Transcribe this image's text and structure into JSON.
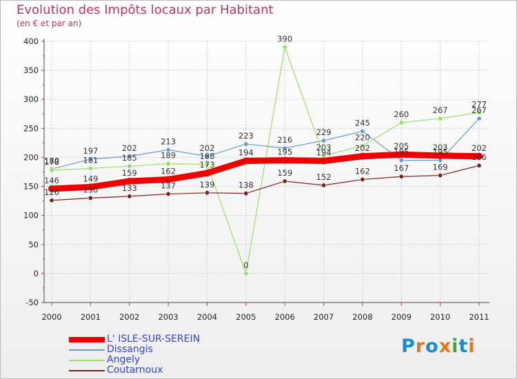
{
  "title": "Evolution des Impôts locaux par Habitant",
  "subtitle": "(en € et par an)",
  "logo": {
    "text": "Proxiti",
    "colors": [
      "#1a8ad4",
      "#e8741a",
      "#1a8ad4",
      "#e8741a",
      "#3aa83a",
      "#1a8ad4",
      "#e8741a"
    ]
  },
  "chart_data": {
    "type": "line",
    "title": "Evolution des Impôts locaux par Habitant",
    "ylabel": "(en € et par an)",
    "xlabel": "",
    "ylim": [
      -50,
      400
    ],
    "yticks": [
      -50,
      0,
      50,
      100,
      150,
      200,
      250,
      300,
      350,
      400
    ],
    "x": [
      "2000",
      "2001",
      "2002",
      "2003",
      "2004",
      "2005",
      "2006",
      "2007",
      "2008",
      "2009",
      "2010",
      "2011"
    ],
    "grid": true,
    "series": [
      {
        "name": "L' ISLE-SUR-SEREIN",
        "color": "#ee0000",
        "values": [
          146,
          149,
          159,
          162,
          173,
          194,
          195,
          194,
          202,
          205,
          203,
          202
        ]
      },
      {
        "name": "Dissangis",
        "color": "#6699cc",
        "values": [
          180,
          197,
          202,
          213,
          202,
          223,
          216,
          229,
          245,
          195,
          195,
          267
        ]
      },
      {
        "name": "Angely",
        "color": "#99dd66",
        "values": [
          178,
          181,
          185,
          189,
          188,
          0,
          390,
          203,
          220,
          260,
          267,
          277
        ]
      },
      {
        "name": "Coutarnoux",
        "color": "#772222",
        "values": [
          126,
          130,
          133,
          137,
          139,
          138,
          159,
          152,
          162,
          167,
          169,
          186
        ]
      }
    ]
  }
}
